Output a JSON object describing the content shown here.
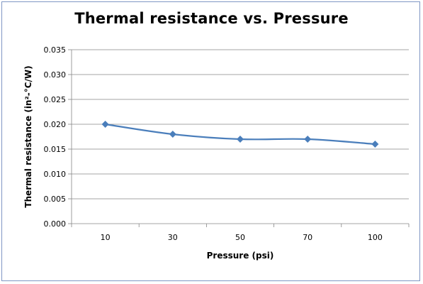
{
  "chart_data": {
    "type": "line",
    "title": "Thermal resistance vs. Pressure",
    "xlabel": "Pressure (psi)",
    "ylabel": "Thermal resistance (in²-°C/W)",
    "categories": [
      "10",
      "30",
      "50",
      "70",
      "100"
    ],
    "series": [
      {
        "values": [
          0.02,
          0.018,
          0.017,
          0.017,
          0.016
        ]
      }
    ],
    "ylim": [
      0,
      0.035
    ],
    "yticks": [
      "0.000",
      "0.005",
      "0.010",
      "0.015",
      "0.020",
      "0.025",
      "0.030",
      "0.035"
    ],
    "grid": true,
    "legend": "none",
    "colors": {
      "series": "#4a7ebb",
      "marker": "#4a7ebb",
      "grid": "#868686",
      "frame": "#7f96c4"
    }
  }
}
